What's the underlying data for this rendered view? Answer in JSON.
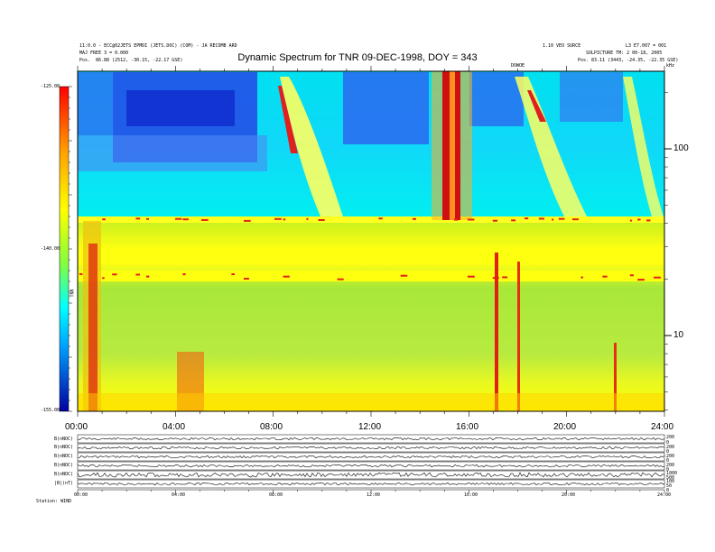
{
  "chart_data": {
    "type": "heatmap",
    "title": "Dynamic Spectrum for TNR 09-DEC-1998, DOY = 343",
    "header": {
      "left_line1": "11:0.0 - ECC@02JETS EPMDI (JETS.DOC) (COM) - JA RECOMB ARD",
      "left_line2": "MAJ FREE 3 = 0.000",
      "left_line3_label": "Pos.",
      "left_line3_value": "86.88 (2512, -30.15, -22.17 GSE)",
      "right_line1": "1.10 VEO SURCE",
      "right_line1b": "L3 E7.007 = 001",
      "right_line2": "SOLPICTURE TM: 2 00-18, 2005",
      "right_line3_label": "Pos.",
      "right_line3_value": "83.11 (3443, -24.35, -22.35 GSE)",
      "marker_label": "DOWOE",
      "unit_label": "kHz"
    },
    "x_axis": {
      "ticks": [
        "00:00",
        "04:00",
        "08:00",
        "12:00",
        "16:00",
        "20:00",
        "24:00"
      ],
      "range_hours": [
        0,
        24
      ]
    },
    "y_axis_right": {
      "scale": "log",
      "ticks": [
        "100",
        "10"
      ],
      "unit": "kHz"
    },
    "colorbar": {
      "ticks": [
        "-125.00",
        "-140.00",
        "-155.00"
      ],
      "range": [
        -155,
        -125
      ],
      "label": "TNR"
    },
    "panels": [
      {
        "label": "B(nNOC)",
        "right_ticks": [
          "200",
          "0"
        ]
      },
      {
        "label": "B(nNOC)",
        "right_ticks": [
          "200",
          "0"
        ]
      },
      {
        "label": "B(nNOC)",
        "right_ticks": [
          "200",
          "0"
        ]
      },
      {
        "label": "B(nNOC)",
        "right_ticks": [
          "200",
          "0"
        ]
      },
      {
        "label": "B(nNOC)",
        "right_ticks": [
          "1000",
          "500"
        ]
      },
      {
        "label": "|B|(nT)",
        "right_ticks": [
          "100",
          "50",
          "0"
        ]
      }
    ],
    "bottom_x_ticks": [
      "00:00",
      "04:00",
      "08:00",
      "12:00",
      "16:00",
      "20:00",
      "24:00"
    ],
    "bottom_left_label": "Station: WIND"
  },
  "colors": {
    "background": "#00e6f0",
    "low_band": "#a8e838",
    "yellow": "#ffff00",
    "red": "#dd1010",
    "blue": "#2040e0"
  }
}
